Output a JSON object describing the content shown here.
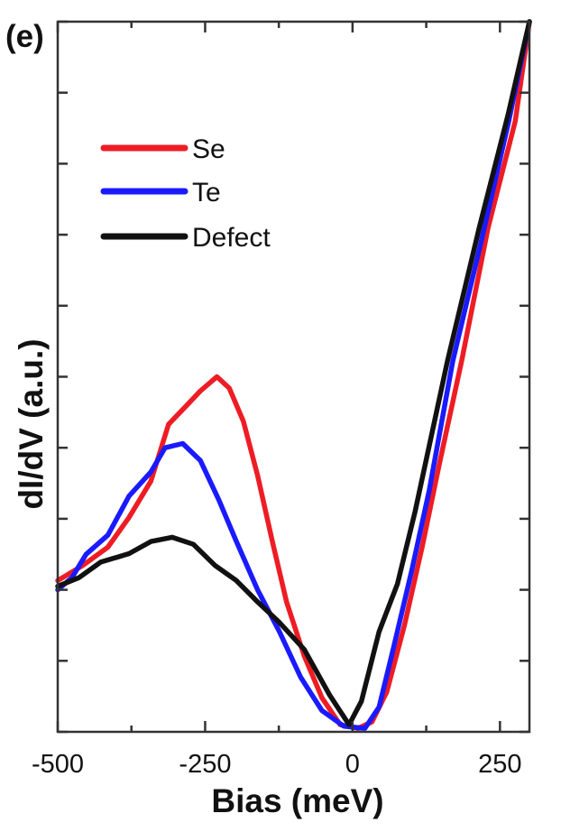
{
  "chart_data": {
    "type": "line",
    "panel_label": "(e)",
    "xlabel": "Bias (meV)",
    "ylabel": "dI/dV (a.u.)",
    "xlim": [
      -500,
      300
    ],
    "ylim": [
      0,
      10
    ],
    "xticks": [
      -500,
      -250,
      0,
      250
    ],
    "xtick_labels": [
      "-500",
      "-250",
      "0",
      "250"
    ],
    "x_minor_ticks": [
      -375,
      -125,
      125
    ],
    "yticks": [
      0,
      1,
      2,
      3,
      4,
      5,
      6,
      7,
      8,
      9,
      10
    ],
    "ytick_labels_shown": false,
    "grid": false,
    "legend_position": "top-left",
    "series": [
      {
        "name": "Se",
        "color": "#ee1c24",
        "x": [
          -500,
          -458,
          -415,
          -379,
          -342,
          -312,
          -282,
          -258,
          -230,
          -209,
          -185,
          -161,
          -136,
          -112,
          -82,
          -52,
          -21,
          9,
          33,
          58,
          88,
          118,
          148,
          185,
          230,
          276,
          300
        ],
        "y": [
          2.13,
          2.34,
          2.6,
          3.02,
          3.53,
          4.33,
          4.59,
          4.8,
          5.0,
          4.84,
          4.37,
          3.61,
          2.68,
          1.83,
          1.07,
          0.48,
          0.1,
          0.05,
          0.14,
          0.56,
          1.5,
          2.6,
          3.8,
          5.22,
          7.1,
          8.6,
          10
        ]
      },
      {
        "name": "Te",
        "color": "#1a1aff",
        "x": [
          -500,
          -476,
          -452,
          -415,
          -379,
          -342,
          -318,
          -288,
          -258,
          -227,
          -197,
          -161,
          -124,
          -88,
          -52,
          -15,
          21,
          45,
          70,
          100,
          130,
          170,
          218,
          265,
          300
        ],
        "y": [
          2.0,
          2.17,
          2.5,
          2.77,
          3.32,
          3.66,
          4.0,
          4.06,
          3.82,
          3.27,
          2.68,
          2.0,
          1.41,
          0.77,
          0.3,
          0.08,
          0.05,
          0.35,
          1.2,
          2.26,
          3.4,
          5.22,
          6.9,
          8.6,
          10
        ]
      },
      {
        "name": "Defect",
        "color": "#111111",
        "x": [
          -500,
          -464,
          -427,
          -379,
          -342,
          -306,
          -270,
          -233,
          -197,
          -161,
          -124,
          -82,
          -39,
          -6,
          15,
          45,
          76,
          106,
          161,
          215,
          264,
          300
        ],
        "y": [
          2.05,
          2.17,
          2.39,
          2.51,
          2.68,
          2.74,
          2.64,
          2.34,
          2.13,
          1.83,
          1.54,
          1.16,
          0.52,
          0.1,
          0.43,
          1.41,
          2.08,
          3.1,
          5.22,
          7.1,
          8.7,
          10
        ]
      }
    ]
  }
}
